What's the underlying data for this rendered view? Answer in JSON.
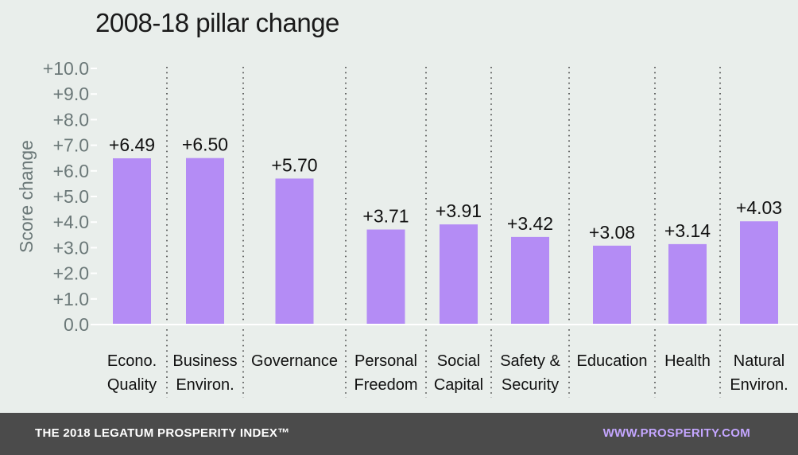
{
  "chart_data": {
    "type": "bar",
    "title": "2008-18 pillar change",
    "ylabel": "Score change",
    "xlabel": "",
    "ylim": [
      0,
      10
    ],
    "yticks": [
      "0.0",
      "+1.0",
      "+2.0",
      "+3.0",
      "+4.0",
      "+5.0",
      "+6.0",
      "+7.0",
      "+8.0",
      "+9.0",
      "+10.0"
    ],
    "categories": [
      [
        "Econo.",
        "Quality"
      ],
      [
        "Business",
        "Environ."
      ],
      [
        "Governance"
      ],
      [
        "Personal",
        "Freedom"
      ],
      [
        "Social",
        "Capital"
      ],
      [
        "Safety &",
        "Security"
      ],
      [
        "Education"
      ],
      [
        "Health"
      ],
      [
        "Natural",
        "Environ."
      ]
    ],
    "values": [
      6.49,
      6.5,
      5.7,
      3.71,
      3.91,
      3.42,
      3.08,
      3.14,
      4.03
    ],
    "data_labels": [
      "+6.49",
      "+6.50",
      "+5.70",
      "+3.71",
      "+3.91",
      "+3.42",
      "+3.08",
      "+3.14",
      "+4.03"
    ],
    "bar_color": "#b48cf5",
    "grid": false,
    "separators": "dotted"
  },
  "footer": {
    "left_text": "THE 2018 LEGATUM PROSPERITY INDEX™",
    "right_text": "WWW.PROSPERITY.COM",
    "background": "#4b4b4b",
    "right_color": "#c4a6ff"
  }
}
